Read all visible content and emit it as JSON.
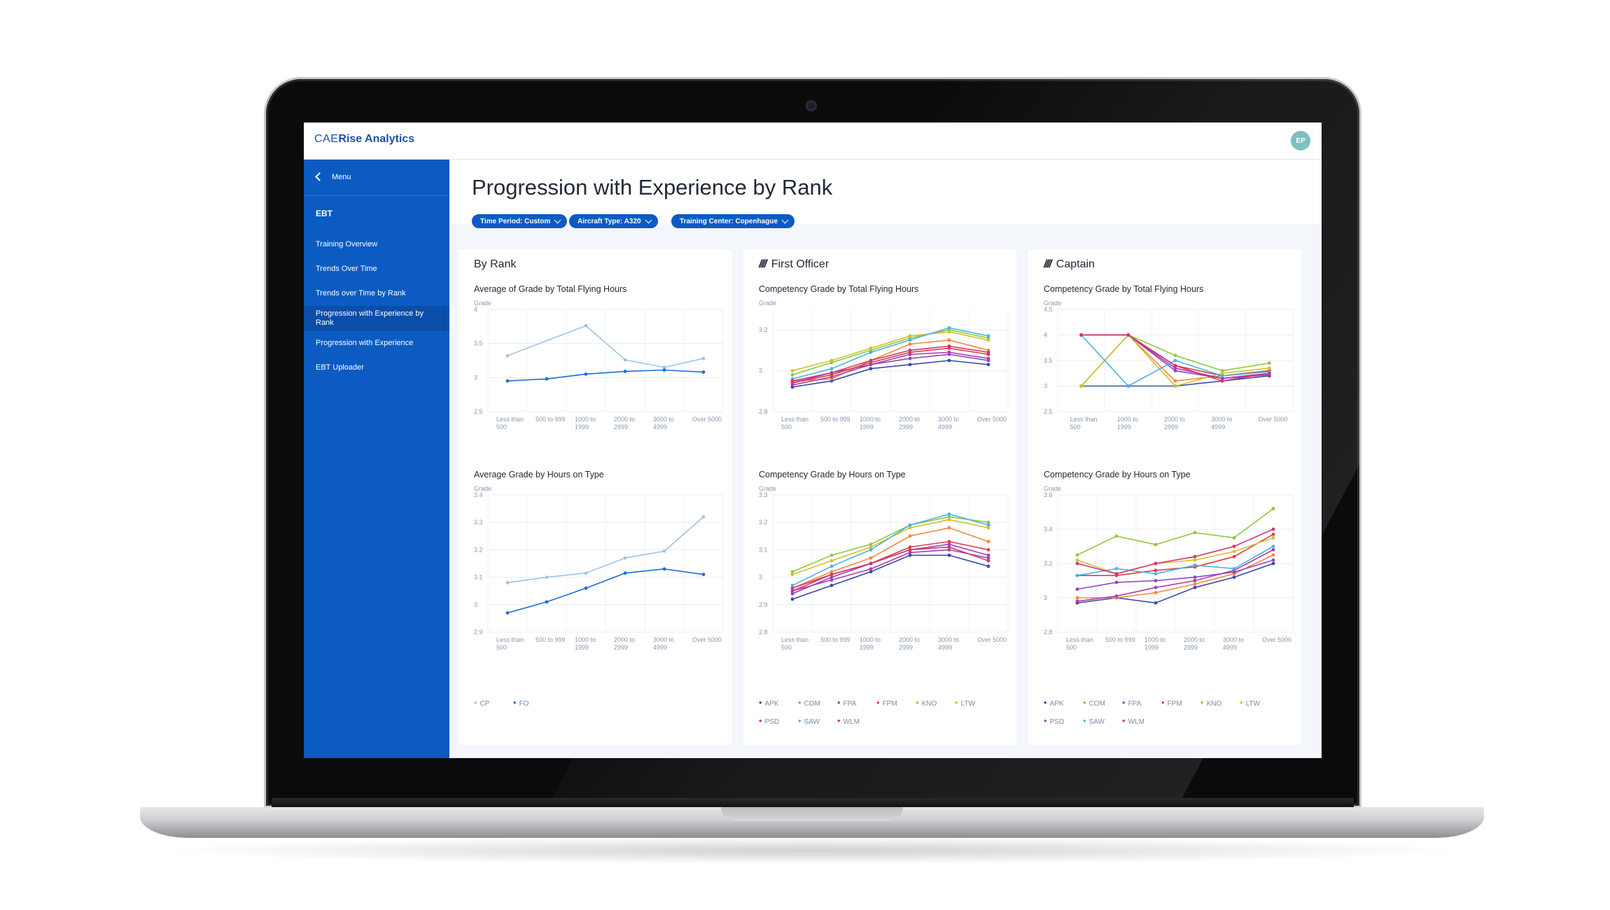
{
  "app": {
    "brand_prefix": "CAE",
    "brand_name": "Rise Analytics",
    "user_initials": "EP"
  },
  "sidebar": {
    "menu_label": "Menu",
    "section": "EBT",
    "items": [
      {
        "label": "Training Overview"
      },
      {
        "label": "Trends Over Time"
      },
      {
        "label": "Trends over Time by Rank"
      },
      {
        "label": "Progression with Experience by Rank"
      },
      {
        "label": "Progression with Experience"
      },
      {
        "label": "EBT Uploader"
      }
    ]
  },
  "page": {
    "title": "Progression with Experience by Rank",
    "filters": [
      {
        "label": "Time Period: Custom"
      },
      {
        "label": "Aircraft Type: A320"
      },
      {
        "label": "Training Center: Copenhague"
      }
    ]
  },
  "cards": [
    {
      "title": "By Rank",
      "icon": ""
    },
    {
      "title": "First Officer",
      "icon": "////"
    },
    {
      "title": "Captain",
      "icon": "////"
    }
  ],
  "colors": {
    "primary": "#0b5bc2",
    "sidebar_active": "#0a4ea9",
    "background": "#f3f6fb"
  },
  "chart_data": [
    {
      "id": "rank_total",
      "type": "line",
      "title": "Average of Grade by Total Flying Hours",
      "ylabel": "Grade",
      "categories": [
        [
          "Less than",
          "500"
        ],
        [
          "500 to 999"
        ],
        [
          "1000 to",
          "1999"
        ],
        [
          "2000 to",
          "2999"
        ],
        [
          "3000 to",
          "4999"
        ],
        [
          "Over 5000"
        ]
      ],
      "ylim": [
        2.5,
        4
      ],
      "yticks": [
        "4",
        "3.5",
        "3",
        "2.5"
      ],
      "ytick_values": [
        4,
        3.5,
        3,
        2.5
      ],
      "series": [
        {
          "name": "CP",
          "color": "#9ec4e6",
          "values": [
            3.32,
            null,
            3.76,
            3.26,
            3.15,
            3.28
          ]
        },
        {
          "name": "FO",
          "color": "#1f6fd1",
          "values": [
            2.95,
            2.98,
            3.05,
            3.09,
            3.11,
            3.08
          ]
        }
      ]
    },
    {
      "id": "rank_type",
      "type": "line",
      "title": "Average Grade by Hours on Type",
      "ylabel": "Grade",
      "categories": [
        [
          "Less than",
          "500"
        ],
        [
          "500 to 999"
        ],
        [
          "1000 to",
          "1999"
        ],
        [
          "2000 to",
          "2999"
        ],
        [
          "3000 to",
          "4999"
        ],
        [
          "Over 5000"
        ]
      ],
      "ylim": [
        2.9,
        3.4
      ],
      "yticks": [
        "3.4",
        "3.3",
        "3.2",
        "3.1",
        "3",
        "2.9"
      ],
      "ytick_values": [
        3.4,
        3.3,
        3.2,
        3.1,
        3.0,
        2.9
      ],
      "series": [
        {
          "name": "CP",
          "color": "#9ec4e6",
          "values": [
            3.08,
            3.1,
            3.115,
            3.17,
            3.195,
            3.32
          ]
        },
        {
          "name": "FO",
          "color": "#1f6fd1",
          "values": [
            2.97,
            3.01,
            3.06,
            3.115,
            3.13,
            3.11
          ]
        }
      ]
    },
    {
      "id": "fo_total",
      "type": "line",
      "title": "Competency Grade by Total Flying Hours",
      "ylabel": "Grade",
      "categories": [
        [
          "Less than",
          "500"
        ],
        [
          "500 to 999"
        ],
        [
          "1000 to",
          "1999"
        ],
        [
          "2000 to",
          "2999"
        ],
        [
          "3000 to",
          "4999"
        ],
        [
          "Over 5000"
        ]
      ],
      "ylim": [
        2.8,
        3.3
      ],
      "yticks": [
        "3.2",
        "3",
        "2.8"
      ],
      "ytick_values": [
        3.2,
        3.0,
        2.8
      ],
      "series": [
        {
          "name": "APK",
          "color": "#3949ab",
          "values": [
            2.92,
            2.95,
            3.01,
            3.03,
            3.05,
            3.03
          ]
        },
        {
          "name": "COM",
          "color": "#f08a3c",
          "values": [
            2.95,
            2.96,
            3.05,
            3.13,
            3.15,
            3.1
          ]
        },
        {
          "name": "FPA",
          "color": "#8e44c9",
          "values": [
            2.94,
            2.99,
            3.03,
            3.06,
            3.08,
            3.05
          ]
        },
        {
          "name": "FPM",
          "color": "#e03c4a",
          "values": [
            2.94,
            2.98,
            3.04,
            3.09,
            3.11,
            3.08
          ]
        },
        {
          "name": "KNO",
          "color": "#8fc93a",
          "values": [
            2.98,
            3.04,
            3.1,
            3.16,
            3.2,
            3.16
          ]
        },
        {
          "name": "LTW",
          "color": "#d4c02a",
          "values": [
            3.0,
            3.05,
            3.11,
            3.17,
            3.19,
            3.15
          ]
        },
        {
          "name": "PSD",
          "color": "#b03ca8",
          "values": [
            2.93,
            2.97,
            3.03,
            3.08,
            3.09,
            3.06
          ]
        },
        {
          "name": "SAW",
          "color": "#4ab3e6",
          "values": [
            2.96,
            3.01,
            3.09,
            3.15,
            3.21,
            3.17
          ]
        },
        {
          "name": "WLM",
          "color": "#d6336c",
          "values": [
            2.95,
            2.99,
            3.05,
            3.1,
            3.12,
            3.09
          ]
        }
      ]
    },
    {
      "id": "fo_type",
      "type": "line",
      "title": "Competency Grade by Hours on Type",
      "ylabel": "Grade",
      "categories": [
        [
          "Less than",
          "500"
        ],
        [
          "500 to 999"
        ],
        [
          "1000 to",
          "1999"
        ],
        [
          "2000 to",
          "2999"
        ],
        [
          "3000 to",
          "4999"
        ],
        [
          "Over 5000"
        ]
      ],
      "ylim": [
        2.8,
        3.3
      ],
      "yticks": [
        "3.3",
        "3.2",
        "3.1",
        "3",
        "2.9",
        "2.8"
      ],
      "ytick_values": [
        3.3,
        3.2,
        3.1,
        3.0,
        2.9,
        2.8
      ],
      "series": [
        {
          "name": "APK",
          "color": "#3949ab",
          "values": [
            2.92,
            2.97,
            3.02,
            3.08,
            3.08,
            3.04
          ]
        },
        {
          "name": "COM",
          "color": "#f08a3c",
          "values": [
            2.96,
            3.02,
            3.07,
            3.15,
            3.18,
            3.13
          ]
        },
        {
          "name": "FPA",
          "color": "#8e44c9",
          "values": [
            2.94,
            3.0,
            3.05,
            3.1,
            3.12,
            3.08
          ]
        },
        {
          "name": "FPM",
          "color": "#e03c4a",
          "values": [
            2.95,
            3.01,
            3.05,
            3.11,
            3.13,
            3.1
          ]
        },
        {
          "name": "KNO",
          "color": "#8fc93a",
          "values": [
            3.02,
            3.08,
            3.12,
            3.19,
            3.22,
            3.2
          ]
        },
        {
          "name": "LTW",
          "color": "#d4c02a",
          "values": [
            3.01,
            3.06,
            3.11,
            3.18,
            3.21,
            3.18
          ]
        },
        {
          "name": "PSD",
          "color": "#b03ca8",
          "values": [
            2.95,
            2.99,
            3.03,
            3.09,
            3.1,
            3.07
          ]
        },
        {
          "name": "SAW",
          "color": "#4ab3e6",
          "values": [
            2.97,
            3.04,
            3.1,
            3.19,
            3.23,
            3.19
          ]
        },
        {
          "name": "WLM",
          "color": "#d6336c",
          "values": [
            2.96,
            3.01,
            3.05,
            3.1,
            3.11,
            3.06
          ]
        }
      ]
    },
    {
      "id": "cp_total",
      "type": "line",
      "title": "Competency Grade by Total Flying Hours",
      "ylabel": "Grade",
      "categories": [
        [
          "Less than",
          "500"
        ],
        [
          "1000 to",
          "1999"
        ],
        [
          "2000 to",
          "2999"
        ],
        [
          "3000 to",
          "4999"
        ],
        [
          "Over 5000"
        ]
      ],
      "ylim": [
        2.5,
        4.5
      ],
      "yticks": [
        "4.5",
        "4",
        "3.5",
        "3",
        "2.5"
      ],
      "ytick_values": [
        4.5,
        4,
        3.5,
        3,
        2.5
      ],
      "series": [
        {
          "name": "APK",
          "color": "#3949ab",
          "values": [
            3.0,
            3.0,
            3.0,
            3.1,
            3.2
          ]
        },
        {
          "name": "COM",
          "color": "#f08a3c",
          "values": [
            3.0,
            4.0,
            3.1,
            3.2,
            3.3
          ]
        },
        {
          "name": "FPA",
          "color": "#8e44c9",
          "values": [
            4.0,
            4.0,
            3.3,
            3.15,
            3.25
          ]
        },
        {
          "name": "FPM",
          "color": "#e03c4a",
          "values": [
            4.0,
            4.0,
            3.4,
            3.2,
            3.3
          ]
        },
        {
          "name": "KNO",
          "color": "#8fc93a",
          "values": [
            3.0,
            4.0,
            3.6,
            3.3,
            3.45
          ]
        },
        {
          "name": "LTW",
          "color": "#d4c02a",
          "values": [
            3.0,
            4.0,
            3.0,
            3.25,
            3.35
          ]
        },
        {
          "name": "PSD",
          "color": "#b03ca8",
          "values": [
            4.0,
            4.0,
            3.35,
            3.15,
            3.22
          ]
        },
        {
          "name": "SAW",
          "color": "#4ab3e6",
          "values": [
            4.0,
            3.0,
            3.5,
            3.2,
            3.28
          ]
        },
        {
          "name": "WLM",
          "color": "#d6336c",
          "values": [
            4.0,
            4.0,
            3.4,
            3.1,
            3.25
          ]
        }
      ]
    },
    {
      "id": "cp_type",
      "type": "line",
      "title": "Competency Grade by Hours on Type",
      "ylabel": "Grade",
      "categories": [
        [
          "Less than",
          "500"
        ],
        [
          "500 to 999"
        ],
        [
          "1000 to",
          "1999"
        ],
        [
          "2000 to",
          "2999"
        ],
        [
          "3000 to",
          "4999"
        ],
        [
          "Over 5000"
        ]
      ],
      "ylim": [
        2.8,
        3.6
      ],
      "yticks": [
        "3.6",
        "3.4",
        "3.2",
        "3",
        "2.8"
      ],
      "ytick_values": [
        3.6,
        3.4,
        3.2,
        3.0,
        2.8
      ],
      "series": [
        {
          "name": "APK",
          "color": "#3949ab",
          "values": [
            2.97,
            3.0,
            2.97,
            3.06,
            3.12,
            3.2
          ]
        },
        {
          "name": "COM",
          "color": "#f08a3c",
          "values": [
            3.0,
            3.0,
            3.03,
            3.08,
            3.14,
            3.25
          ]
        },
        {
          "name": "FPA",
          "color": "#8e44c9",
          "values": [
            3.05,
            3.09,
            3.1,
            3.12,
            3.15,
            3.22
          ]
        },
        {
          "name": "FPM",
          "color": "#e03c4a",
          "values": [
            3.13,
            3.13,
            3.16,
            3.18,
            3.24,
            3.37
          ]
        },
        {
          "name": "KNO",
          "color": "#8fc93a",
          "values": [
            3.25,
            3.36,
            3.31,
            3.38,
            3.35,
            3.52
          ]
        },
        {
          "name": "LTW",
          "color": "#d4c02a",
          "values": [
            3.22,
            3.14,
            3.2,
            3.22,
            3.27,
            3.35
          ]
        },
        {
          "name": "PSD",
          "color": "#b03ca8",
          "values": [
            2.98,
            3.01,
            3.06,
            3.1,
            3.16,
            3.28
          ]
        },
        {
          "name": "SAW",
          "color": "#4ab3e6",
          "values": [
            3.13,
            3.17,
            3.14,
            3.19,
            3.17,
            3.3
          ]
        },
        {
          "name": "WLM",
          "color": "#d6336c",
          "values": [
            3.2,
            3.14,
            3.2,
            3.24,
            3.3,
            3.4
          ]
        }
      ]
    }
  ]
}
